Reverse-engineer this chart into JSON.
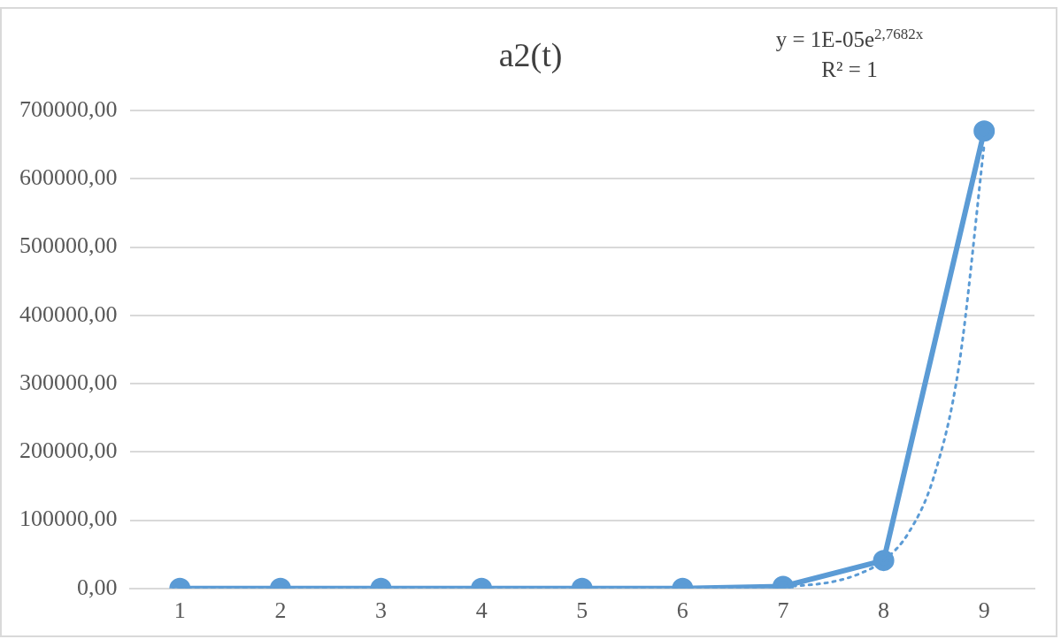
{
  "chart_data": {
    "type": "line",
    "title": "a2(t)",
    "annotations": [
      "y = 1E-05e$^{2,7682x}$",
      "R² = 1"
    ],
    "x": [
      1,
      2,
      3,
      4,
      5,
      6,
      7,
      8,
      9
    ],
    "series": [
      {
        "color": "#5b9bd5",
        "values": [
          0,
          0,
          0,
          0,
          0,
          0,
          3000,
          41000,
          670000
        ],
        "marker": "circle",
        "line_style": "solid"
      },
      {
        "type": "line",
        "color": "#5b9bd5",
        "x": [
          1,
          2,
          3,
          4,
          5,
          6,
          6.5,
          7,
          7.25,
          7.5,
          7.75,
          8,
          8.25,
          8.5,
          8.75,
          9
        ],
        "values": [
          0,
          0,
          0,
          0,
          0,
          0,
          1000,
          3000,
          5000,
          10000,
          21000,
          41000,
          82000,
          164000,
          327000,
          650000
        ],
        "marker": "none",
        "line_style": "dotted"
      }
    ],
    "xlim": [
      0.5,
      9.5
    ],
    "xticks": [
      1,
      2,
      3,
      4,
      5,
      6,
      7,
      8,
      9
    ],
    "ylim": [
      0,
      700000
    ],
    "yticks": [
      {
        "value": 0,
        "label": "0,00"
      },
      {
        "value": 100000,
        "label": "100000,00"
      },
      {
        "value": 200000,
        "label": "200000,00"
      },
      {
        "value": 300000,
        "label": "300000,00"
      },
      {
        "value": 400000,
        "label": "400000,00"
      },
      {
        "value": 500000,
        "label": "500000,00"
      },
      {
        "value": 600000,
        "label": "600000,00"
      },
      {
        "value": 700000,
        "label": "700000,00"
      }
    ],
    "grid": "y",
    "legend": false
  }
}
